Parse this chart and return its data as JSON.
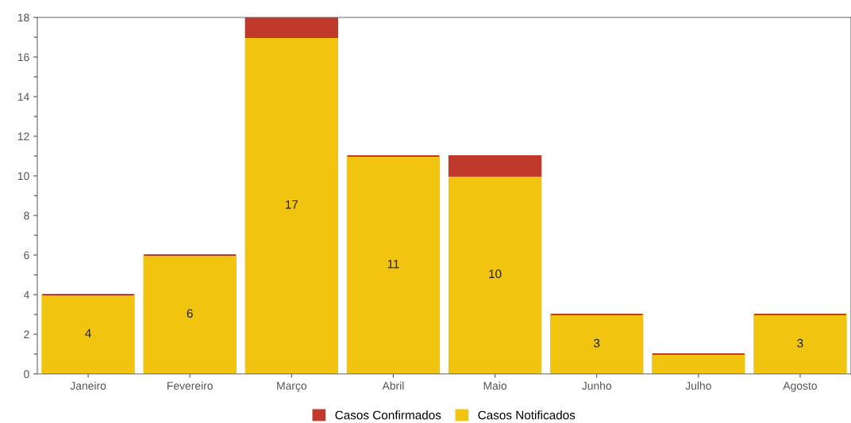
{
  "chart_data": {
    "type": "bar",
    "stacked": true,
    "categories": [
      "Janeiro",
      "Fevereiro",
      "Março",
      "Abril",
      "Maio",
      "Junho",
      "Julho",
      "Agosto"
    ],
    "series": [
      {
        "name": "Casos Notificados",
        "color": "#f1c40f",
        "values": [
          4,
          6,
          17,
          11,
          10,
          3,
          1,
          3
        ],
        "value_labels": [
          "4",
          "6",
          "17",
          "11",
          "10",
          "3",
          null,
          "3"
        ]
      },
      {
        "name": "Casos Confirmados",
        "color": "#c0392b",
        "values": [
          0,
          0,
          1,
          0,
          1,
          0,
          0,
          0
        ]
      }
    ],
    "ylim": [
      0,
      18
    ],
    "yticks": [
      0,
      2,
      4,
      6,
      8,
      10,
      12,
      14,
      16,
      18
    ],
    "grid": false,
    "legend": "bottom"
  }
}
